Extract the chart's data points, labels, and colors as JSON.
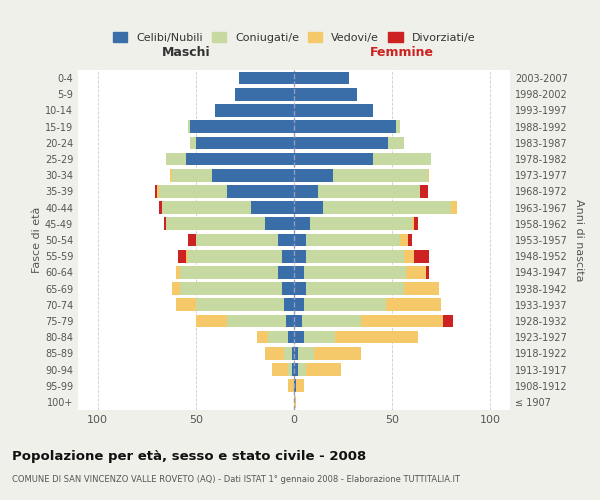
{
  "age_groups": [
    "100+",
    "95-99",
    "90-94",
    "85-89",
    "80-84",
    "75-79",
    "70-74",
    "65-69",
    "60-64",
    "55-59",
    "50-54",
    "45-49",
    "40-44",
    "35-39",
    "30-34",
    "25-29",
    "20-24",
    "15-19",
    "10-14",
    "5-9",
    "0-4"
  ],
  "birth_years": [
    "≤ 1907",
    "1908-1912",
    "1913-1917",
    "1918-1922",
    "1923-1927",
    "1928-1932",
    "1933-1937",
    "1938-1942",
    "1943-1947",
    "1948-1952",
    "1953-1957",
    "1958-1962",
    "1963-1967",
    "1968-1972",
    "1973-1977",
    "1978-1982",
    "1983-1987",
    "1988-1992",
    "1993-1997",
    "1998-2002",
    "2003-2007"
  ],
  "colors": {
    "celibi": "#3a6ea8",
    "coniugati": "#c5d9a0",
    "vedovi": "#f5c96a",
    "divorziati": "#cc2222"
  },
  "maschi": {
    "celibi": [
      0,
      0,
      1,
      1,
      3,
      4,
      5,
      6,
      8,
      6,
      8,
      15,
      22,
      34,
      42,
      55,
      50,
      53,
      40,
      30,
      28
    ],
    "coniugati": [
      0,
      0,
      2,
      4,
      10,
      30,
      45,
      52,
      50,
      48,
      42,
      50,
      45,
      35,
      20,
      10,
      3,
      1,
      0,
      0,
      0
    ],
    "vedovi": [
      0,
      3,
      8,
      10,
      6,
      16,
      10,
      4,
      2,
      1,
      0,
      0,
      0,
      1,
      1,
      0,
      0,
      0,
      0,
      0,
      0
    ],
    "divorziati": [
      0,
      0,
      0,
      0,
      0,
      0,
      0,
      0,
      0,
      4,
      4,
      1,
      2,
      1,
      0,
      0,
      0,
      0,
      0,
      0,
      0
    ]
  },
  "femmine": {
    "celibi": [
      0,
      1,
      2,
      2,
      5,
      4,
      5,
      6,
      5,
      6,
      6,
      8,
      15,
      12,
      20,
      40,
      48,
      52,
      40,
      32,
      28
    ],
    "coniugati": [
      0,
      0,
      4,
      8,
      16,
      30,
      42,
      50,
      52,
      50,
      48,
      52,
      65,
      52,
      48,
      30,
      8,
      2,
      0,
      0,
      0
    ],
    "vedovi": [
      1,
      4,
      18,
      24,
      42,
      42,
      28,
      18,
      10,
      5,
      4,
      1,
      3,
      0,
      1,
      0,
      0,
      0,
      0,
      0,
      0
    ],
    "divorziati": [
      0,
      0,
      0,
      0,
      0,
      5,
      0,
      0,
      2,
      8,
      2,
      2,
      0,
      4,
      0,
      0,
      0,
      0,
      0,
      0,
      0
    ]
  },
  "xlim": 110,
  "title": "Popolazione per età, sesso e stato civile - 2008",
  "subtitle": "COMUNE DI SAN VINCENZO VALLE ROVETO (AQ) - Dati ISTAT 1° gennaio 2008 - Elaborazione TUTTITALIA.IT",
  "ylabel_left": "Fasce di età",
  "ylabel_right": "Anni di nascita",
  "xlabel_left": "Maschi",
  "xlabel_right": "Femmine",
  "bg_color": "#f0f0eb",
  "plot_bg": "#ffffff"
}
